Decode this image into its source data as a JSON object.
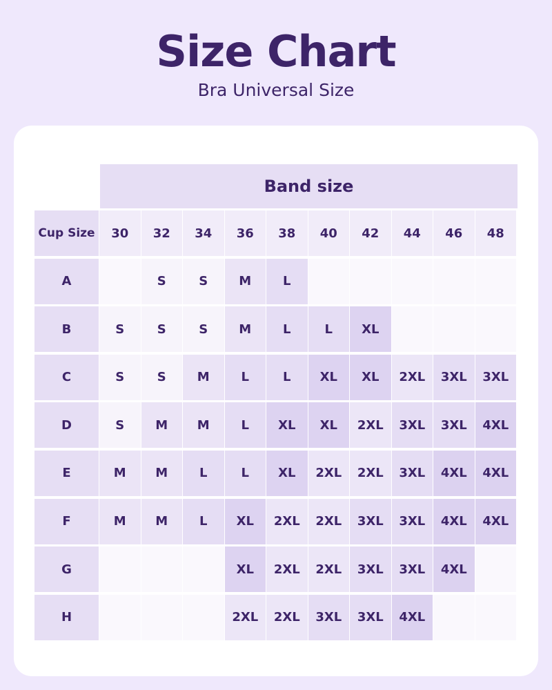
{
  "title": "Size Chart",
  "subtitle": "Bra Universal Size",
  "table": {
    "band_header": "Band size",
    "corner_label": "Cup Size",
    "bands": [
      "30",
      "32",
      "34",
      "36",
      "38",
      "40",
      "42",
      "44",
      "46",
      "48"
    ],
    "rows": [
      {
        "cup": "A",
        "sizes": [
          "",
          "S",
          "S",
          "M",
          "L",
          "",
          "",
          "",
          "",
          ""
        ]
      },
      {
        "cup": "B",
        "sizes": [
          "S",
          "S",
          "S",
          "M",
          "L",
          "L",
          "XL",
          "",
          "",
          ""
        ]
      },
      {
        "cup": "C",
        "sizes": [
          "S",
          "S",
          "M",
          "L",
          "L",
          "XL",
          "XL",
          "2XL",
          "3XL",
          "3XL"
        ]
      },
      {
        "cup": "D",
        "sizes": [
          "S",
          "M",
          "M",
          "L",
          "XL",
          "XL",
          "2XL",
          "3XL",
          "3XL",
          "4XL"
        ]
      },
      {
        "cup": "E",
        "sizes": [
          "M",
          "M",
          "L",
          "L",
          "XL",
          "2XL",
          "2XL",
          "3XL",
          "4XL",
          "4XL"
        ]
      },
      {
        "cup": "F",
        "sizes": [
          "M",
          "M",
          "L",
          "XL",
          "2XL",
          "2XL",
          "3XL",
          "3XL",
          "4XL",
          "4XL"
        ]
      },
      {
        "cup": "G",
        "sizes": [
          "",
          "",
          "",
          "XL",
          "2XL",
          "2XL",
          "3XL",
          "3XL",
          "4XL",
          ""
        ]
      },
      {
        "cup": "H",
        "sizes": [
          "",
          "",
          "",
          "2XL",
          "2XL",
          "3XL",
          "3XL",
          "4XL",
          "",
          ""
        ]
      }
    ]
  },
  "colors": {
    "background": "#efe8fc",
    "text": "#3d2468",
    "empty": "#faf8fd",
    "S": "#f7f4fb",
    "M": "#ebe4f6",
    "L": "#e5ddf4",
    "XL": "#ddd3f1",
    "2XL": "#ece6f7",
    "3XL": "#e5ddf4",
    "4XL": "#dcd2f0"
  }
}
